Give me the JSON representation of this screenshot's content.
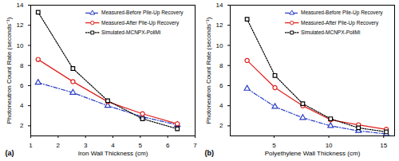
{
  "chart_data": [
    {
      "type": "line",
      "annotation": "(a)",
      "x_label": "Iron Wall Thickness (cm)",
      "y_label": "Photoneutron Count Rate (seconds⁻¹)",
      "x": [
        1.27,
        2.54,
        3.81,
        5.08,
        6.35
      ],
      "series": [
        {
          "name": "Measured-Before Pile-Up Recovery",
          "color": "#2b3fc4",
          "marker": "triangle",
          "line_style": "dashdot",
          "values": [
            6.3,
            5.3,
            4.0,
            2.9,
            2.1
          ]
        },
        {
          "name": "Measured-After Pile-Up Recovery",
          "color": "#e0201b",
          "marker": "circle",
          "line_style": "solid",
          "values": [
            8.6,
            6.4,
            4.4,
            3.2,
            2.2
          ]
        },
        {
          "name": "Simulated-MCNPX-PoliMi",
          "color": "#000000",
          "marker": "square",
          "line_style": "dotted",
          "values": [
            13.3,
            7.7,
            4.5,
            2.7,
            1.7
          ]
        }
      ],
      "xlim": [
        1,
        7
      ],
      "xticks": [
        1,
        2,
        3,
        4,
        5,
        6,
        7
      ],
      "ylim": [
        1,
        14
      ],
      "yticks": [
        2,
        4,
        6,
        8,
        10,
        12,
        14
      ],
      "legend": "upper right",
      "grid": false
    },
    {
      "type": "line",
      "annotation": "(b)",
      "x_label": "Polyethylene Wall Thickness (cm)",
      "y_label": "Photoneutron Count Rate (seconds⁻¹)",
      "x": [
        2.54,
        5.08,
        7.62,
        10.16,
        12.7,
        15.24
      ],
      "series": [
        {
          "name": "Measured-Before Pile-Up Recovery",
          "color": "#2b3fc4",
          "marker": "triangle",
          "line_style": "dashdot",
          "values": [
            5.7,
            3.9,
            2.8,
            2.0,
            1.5,
            1.2
          ]
        },
        {
          "name": "Measured-After Pile-Up Recovery",
          "color": "#e0201b",
          "marker": "circle",
          "line_style": "solid",
          "values": [
            8.5,
            5.8,
            4.0,
            2.6,
            2.1,
            1.65
          ]
        },
        {
          "name": "Simulated-MCNPX-PoliMi",
          "color": "#000000",
          "marker": "square",
          "line_style": "dotted",
          "values": [
            12.6,
            7.0,
            4.2,
            2.7,
            1.8,
            1.4
          ]
        }
      ],
      "xlim": [
        1,
        16
      ],
      "xticks": [
        5,
        10,
        15
      ],
      "ylim": [
        1,
        14
      ],
      "yticks": [
        2,
        4,
        6,
        8,
        10,
        12,
        14
      ],
      "legend": "upper right",
      "grid": false
    }
  ]
}
